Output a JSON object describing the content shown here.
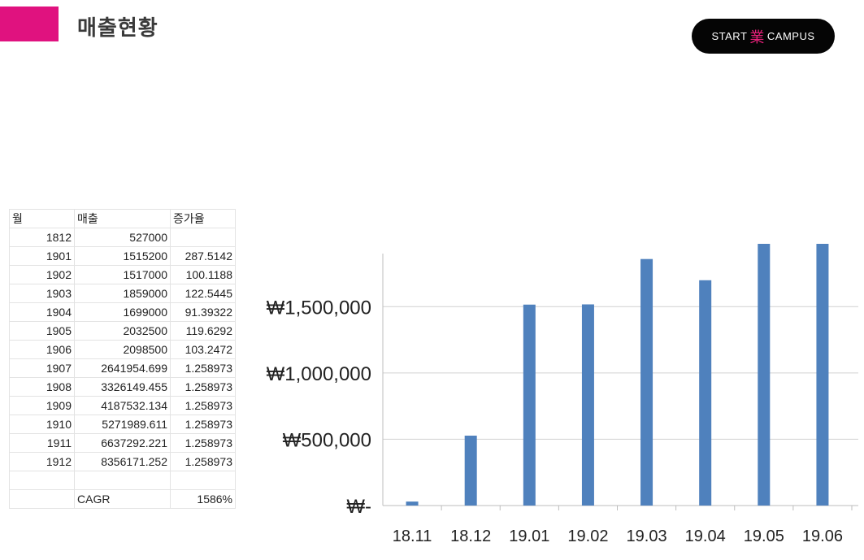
{
  "header": {
    "title": "매출현황",
    "accent_color": "#e0127f",
    "logo": {
      "left": "START",
      "mark": "業",
      "right": "CAMPUS",
      "bg": "#050505"
    }
  },
  "table": {
    "headers": [
      "월",
      "매출",
      "증가율"
    ],
    "rows": [
      [
        "1812",
        "527000",
        ""
      ],
      [
        "1901",
        "1515200",
        "287.5142"
      ],
      [
        "1902",
        "1517000",
        "100.1188"
      ],
      [
        "1903",
        "1859000",
        "122.5445"
      ],
      [
        "1904",
        "1699000",
        "91.39322"
      ],
      [
        "1905",
        "2032500",
        "119.6292"
      ],
      [
        "1906",
        "2098500",
        "103.2472"
      ],
      [
        "1907",
        "2641954.699",
        "1.258973"
      ],
      [
        "1908",
        "3326149.455",
        "1.258973"
      ],
      [
        "1909",
        "4187532.134",
        "1.258973"
      ],
      [
        "1910",
        "5271989.611",
        "1.258973"
      ],
      [
        "1911",
        "6637292.221",
        "1.258973"
      ],
      [
        "1912",
        "8356171.252",
        "1.258973"
      ],
      [
        "",
        "",
        ""
      ],
      [
        "",
        "CAGR",
        "1586%"
      ]
    ]
  },
  "chart_data": {
    "type": "bar",
    "categories": [
      "18.11",
      "18.12",
      "19.01",
      "19.02",
      "19.03",
      "19.04",
      "19.05",
      "19.06"
    ],
    "values": [
      30000,
      527000,
      1515200,
      1517000,
      1859000,
      1699000,
      2032500,
      2098500
    ],
    "ylim": [
      0,
      1900000
    ],
    "yticks": [
      {
        "value": 0,
        "label": "₩-"
      },
      {
        "value": 500000,
        "label": "₩500,000"
      },
      {
        "value": 1000000,
        "label": "₩1,000,000"
      },
      {
        "value": 1500000,
        "label": "₩1,500,000"
      }
    ],
    "grid": true,
    "bar_color": "#4f81bd",
    "grid_color": "#d0d0d0"
  }
}
